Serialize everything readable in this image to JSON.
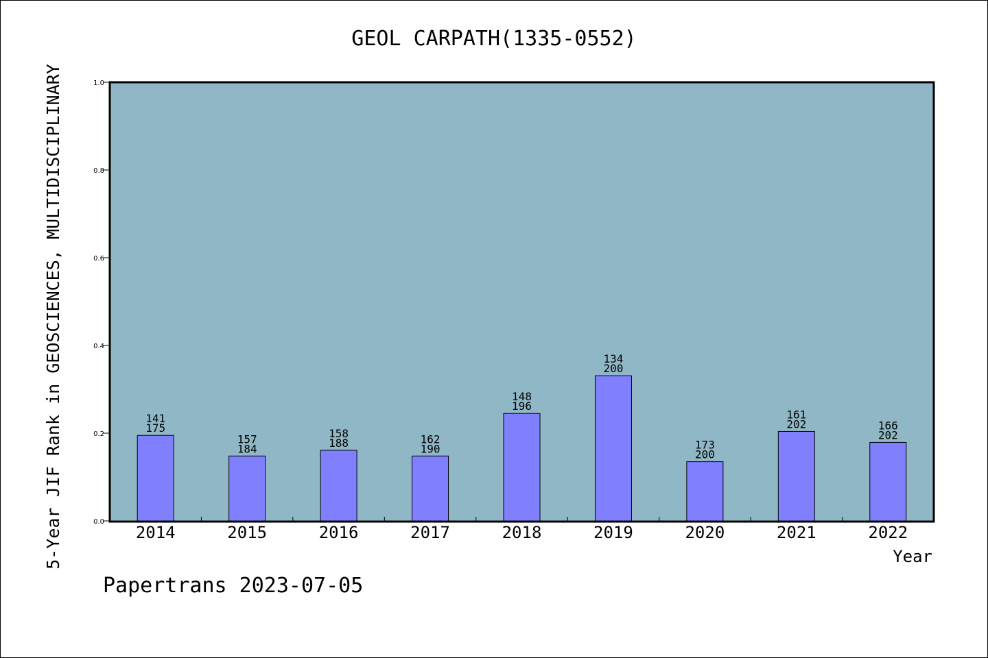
{
  "chart_data": {
    "type": "bar",
    "title": "GEOL CARPATH(1335-0552)",
    "xlabel": "Year",
    "ylabel": "5-Year JIF Rank in GEOSCIENCES, MULTIDISCIPLINARY",
    "ylim": [
      0,
      1.0
    ],
    "yticks": [
      "0.0",
      "0.2",
      "0.4",
      "0.6",
      "0.8",
      "1.0"
    ],
    "categories": [
      "2014",
      "2015",
      "2016",
      "2017",
      "2018",
      "2019",
      "2020",
      "2021",
      "2022"
    ],
    "values": [
      0.195,
      0.148,
      0.161,
      0.148,
      0.245,
      0.331,
      0.135,
      0.204,
      0.179
    ],
    "rank_labels": [
      "141",
      "157",
      "158",
      "162",
      "148",
      "134",
      "173",
      "161",
      "166"
    ],
    "total_labels": [
      "175",
      "184",
      "188",
      "190",
      "196",
      "200",
      "200",
      "202",
      "202"
    ],
    "grid": false,
    "colors": {
      "plot_bg": "#8fb7c5",
      "bar": "#8080ff",
      "axis": "#000000"
    }
  },
  "footer": {
    "credit": "Papertrans 2023-07-05"
  }
}
